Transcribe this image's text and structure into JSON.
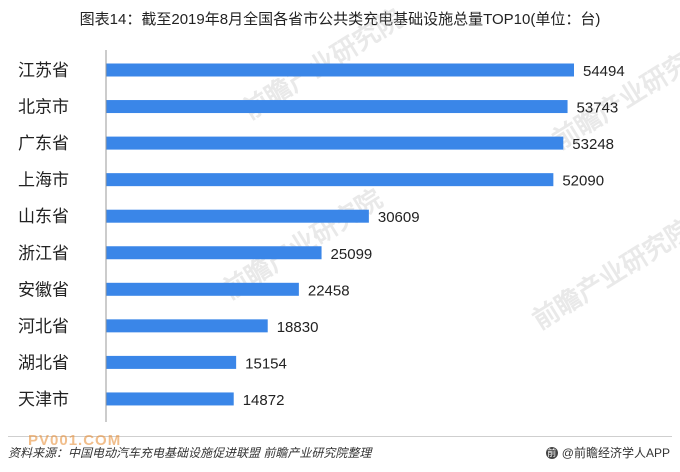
{
  "title": "图表14：截至2019年8月全国各省市公共类充电基础设施总量TOP10(单位：台)",
  "source": "资料来源：中国电动汽车充电基础设施促进联盟 前瞻产业研究院整理",
  "brand": "@前瞻经济学人APP",
  "watermark": "前瞻产业研究院",
  "bottom_watermark": "PV001.COM",
  "colors": {
    "bar": "#3a86e8",
    "axis": "#999999",
    "text": "#222222"
  },
  "chart_data": {
    "type": "bar",
    "orientation": "horizontal",
    "title": "图表14：截至2019年8月全国各省市公共类充电基础设施总量TOP10(单位：台)",
    "xlabel": "",
    "ylabel": "",
    "categories": [
      "江苏省",
      "北京市",
      "广东省",
      "上海市",
      "山东省",
      "浙江省",
      "安徽省",
      "河北省",
      "湖北省",
      "天津市"
    ],
    "values": [
      54494,
      53743,
      53248,
      52090,
      30609,
      25099,
      22458,
      18830,
      15154,
      14872
    ],
    "xlim": [
      0,
      54494
    ],
    "grid": false,
    "legend": "none",
    "data_labels": true
  }
}
